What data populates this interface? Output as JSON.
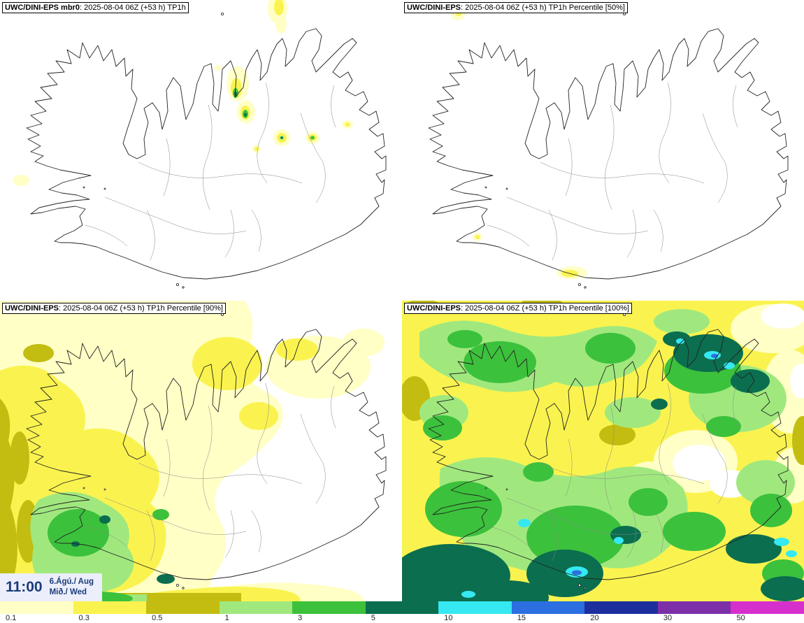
{
  "panels": [
    {
      "id": "member-0",
      "model": "UWC/DINI-EPS mbr0",
      "rest": ": 2025-08-04 06Z (+53 h) TP1h"
    },
    {
      "id": "percentile-50",
      "model": "UWC/DINI-EPS",
      "rest": ": 2025-08-04 06Z (+53 h) TP1h Percentile [50%]"
    },
    {
      "id": "percentile-90",
      "model": "UWC/DINI-EPS",
      "rest": ": 2025-08-04 06Z (+53 h) TP1h Percentile [90%]"
    },
    {
      "id": "percentile-100",
      "model": "UWC/DINI-EPS",
      "rest": ": 2025-08-04 06Z (+53 h) TP1h Percentile [100%]"
    }
  ],
  "time_box": {
    "time": "11:00",
    "date": "6.Ágú./ Aug",
    "day": "Mið./ Wed",
    "text_color": "#1b3d7a",
    "background": "#eceefb"
  },
  "colorbar": {
    "ticks": [
      "0.1",
      "0.3",
      "0.5",
      "1",
      "3",
      "5",
      "10",
      "15",
      "20",
      "30",
      "50"
    ],
    "segments": [
      {
        "level": "0.1",
        "color": "#ffffc6"
      },
      {
        "level": "0.3",
        "color": "#faf34f"
      },
      {
        "level": "0.5",
        "color": "#c2bd10"
      },
      {
        "level": "1",
        "color": "#a0e87e"
      },
      {
        "level": "3",
        "color": "#3cc13c"
      },
      {
        "level": "5",
        "color": "#0b6e4f"
      },
      {
        "level": "10",
        "color": "#35e8f2"
      },
      {
        "level": "15",
        "color": "#2b6fe0"
      },
      {
        "level": "20",
        "color": "#1d2f9e"
      },
      {
        "level": "30",
        "color": "#7d2fa8"
      },
      {
        "level": "50",
        "color": "#d630cc"
      }
    ]
  }
}
